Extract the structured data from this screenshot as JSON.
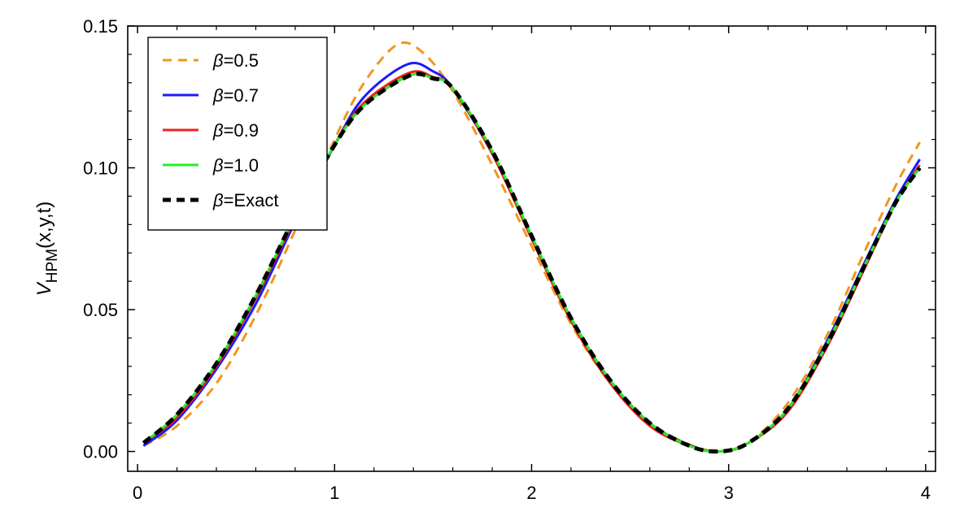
{
  "chart_data": {
    "type": "line",
    "title": "",
    "xlabel": "",
    "ylabel": {
      "main": "V",
      "sub": "HPM",
      "rest": "(x,y,t)"
    },
    "xlim": [
      -0.05,
      4.05
    ],
    "ylim": [
      -0.007,
      0.15
    ],
    "xticks": [
      0,
      1,
      2,
      3,
      4
    ],
    "xtick_labels": [
      "0",
      "1",
      "2",
      "3",
      "4"
    ],
    "yticks": [
      0.0,
      0.05,
      0.1,
      0.15
    ],
    "ytick_labels": [
      "0.00",
      "0.05",
      "0.10",
      "0.15"
    ],
    "grid": false,
    "legend_position": "top-left",
    "legend_symbol": "β",
    "series": [
      {
        "name": "=0.5",
        "color": "#f0961e",
        "dash": "dashed",
        "x": [
          0.03,
          0.2,
          0.4,
          0.6,
          0.8,
          1.0,
          1.15,
          1.32,
          1.45,
          1.6,
          1.8,
          2.0,
          2.2,
          2.4,
          2.6,
          2.8,
          2.95,
          3.1,
          3.3,
          3.5,
          3.7,
          3.85,
          3.97
        ],
        "y": [
          0.002,
          0.009,
          0.024,
          0.048,
          0.078,
          0.11,
          0.13,
          0.1435,
          0.1405,
          0.127,
          0.101,
          0.0725,
          0.045,
          0.024,
          0.01,
          0.0025,
          0.0,
          0.003,
          0.017,
          0.041,
          0.072,
          0.094,
          0.109
        ]
      },
      {
        "name": "=0.7",
        "color": "#1a1aff",
        "dash": "solid",
        "x": [
          0.03,
          0.2,
          0.4,
          0.6,
          0.8,
          1.0,
          1.15,
          1.37,
          1.5,
          1.6,
          1.8,
          2.0,
          2.2,
          2.4,
          2.6,
          2.8,
          2.95,
          3.1,
          3.3,
          3.5,
          3.7,
          3.85,
          3.97
        ],
        "y": [
          0.002,
          0.011,
          0.029,
          0.052,
          0.081,
          0.108,
          0.125,
          0.1365,
          0.134,
          0.128,
          0.105,
          0.0755,
          0.047,
          0.025,
          0.01,
          0.0022,
          0.0,
          0.003,
          0.015,
          0.039,
          0.068,
          0.089,
          0.103
        ]
      },
      {
        "name": "=0.9",
        "color": "#ee2222",
        "dash": "solid",
        "x": [
          0.03,
          0.2,
          0.4,
          0.6,
          0.8,
          1.0,
          1.15,
          1.38,
          1.5,
          1.6,
          1.8,
          2.0,
          2.2,
          2.4,
          2.6,
          2.8,
          2.95,
          3.1,
          3.3,
          3.5,
          3.7,
          3.85,
          3.97
        ],
        "y": [
          0.003,
          0.012,
          0.03,
          0.054,
          0.082,
          0.108,
          0.123,
          0.1335,
          0.132,
          0.128,
          0.105,
          0.075,
          0.046,
          0.024,
          0.009,
          0.002,
          0.0,
          0.003,
          0.014,
          0.037,
          0.066,
          0.088,
          0.101
        ]
      },
      {
        "name": "=1.0",
        "color": "#22ee22",
        "dash": "solid",
        "x": [
          0.03,
          0.2,
          0.4,
          0.6,
          0.8,
          1.0,
          1.15,
          1.38,
          1.5,
          1.6,
          1.8,
          2.0,
          2.2,
          2.4,
          2.6,
          2.8,
          2.95,
          3.1,
          3.3,
          3.5,
          3.7,
          3.85,
          3.97
        ],
        "y": [
          0.003,
          0.013,
          0.031,
          0.055,
          0.083,
          0.108,
          0.122,
          0.1325,
          0.1315,
          0.128,
          0.106,
          0.076,
          0.047,
          0.025,
          0.01,
          0.002,
          0.0,
          0.003,
          0.015,
          0.038,
          0.067,
          0.088,
          0.1
        ]
      },
      {
        "name": "=Exact",
        "color": "#000000",
        "dash": "dashed",
        "x": [
          0.03,
          0.2,
          0.4,
          0.6,
          0.8,
          1.0,
          1.15,
          1.38,
          1.5,
          1.6,
          1.8,
          2.0,
          2.2,
          2.4,
          2.6,
          2.8,
          2.95,
          3.1,
          3.3,
          3.5,
          3.7,
          3.85,
          3.97
        ],
        "y": [
          0.003,
          0.013,
          0.031,
          0.055,
          0.083,
          0.108,
          0.122,
          0.1325,
          0.1315,
          0.128,
          0.106,
          0.076,
          0.047,
          0.025,
          0.01,
          0.002,
          0.0,
          0.003,
          0.015,
          0.038,
          0.067,
          0.088,
          0.1
        ]
      }
    ]
  }
}
